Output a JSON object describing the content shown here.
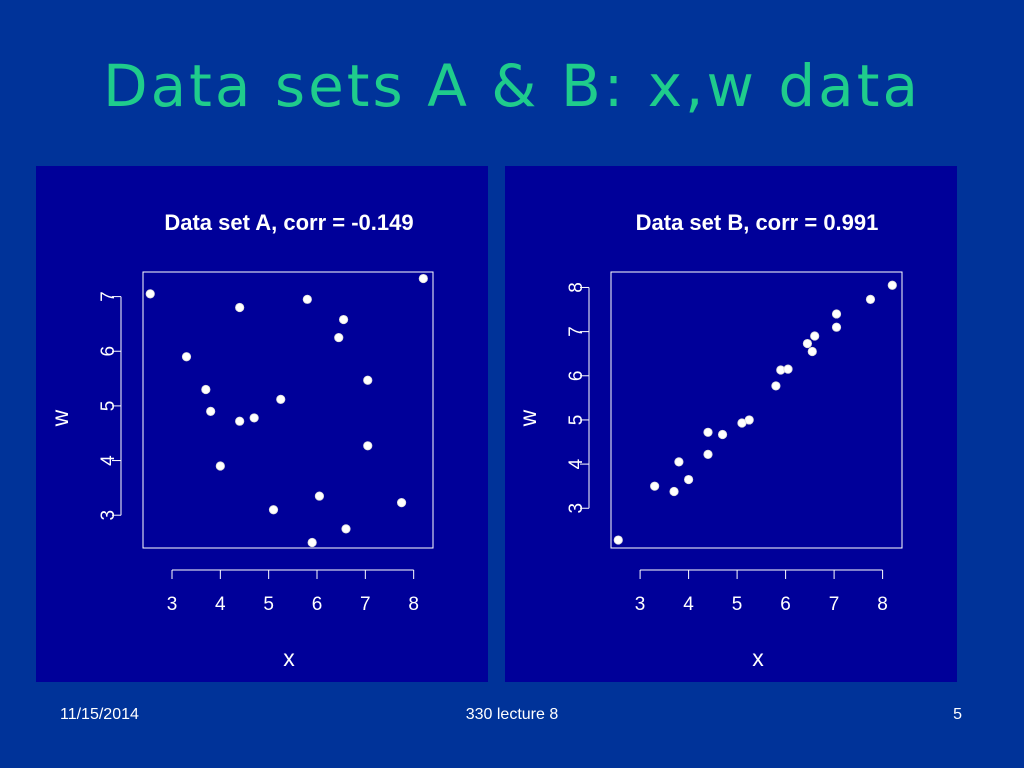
{
  "slide": {
    "title": "Data sets A & B: x,w data",
    "footer_date": "11/15/2014",
    "footer_center": "330 lecture 8",
    "footer_page": "5"
  },
  "colors": {
    "background": "#003399",
    "panel": "#000099",
    "title": "#1fcc8c",
    "text": "#ffffff",
    "points": "#ffffff"
  },
  "chart_data": [
    {
      "type": "scatter",
      "title": "Data set A, corr = -0.149",
      "xlabel": "x",
      "ylabel": "w",
      "xlim": [
        2.4,
        8.4
      ],
      "ylim": [
        2.4,
        7.45
      ],
      "xticks": [
        3,
        4,
        5,
        6,
        7,
        8
      ],
      "yticks": [
        3,
        4,
        5,
        6,
        7
      ],
      "grid": false,
      "points": [
        {
          "x": 2.55,
          "y": 7.05
        },
        {
          "x": 3.3,
          "y": 5.9
        },
        {
          "x": 3.7,
          "y": 5.3
        },
        {
          "x": 3.8,
          "y": 4.9
        },
        {
          "x": 4.0,
          "y": 3.9
        },
        {
          "x": 4.4,
          "y": 6.8
        },
        {
          "x": 4.4,
          "y": 4.72
        },
        {
          "x": 4.7,
          "y": 4.78
        },
        {
          "x": 5.1,
          "y": 3.1
        },
        {
          "x": 5.25,
          "y": 5.12
        },
        {
          "x": 5.8,
          "y": 6.95
        },
        {
          "x": 5.9,
          "y": 2.5
        },
        {
          "x": 6.05,
          "y": 3.35
        },
        {
          "x": 6.45,
          "y": 6.25
        },
        {
          "x": 6.55,
          "y": 6.58
        },
        {
          "x": 6.6,
          "y": 2.75
        },
        {
          "x": 7.05,
          "y": 5.47
        },
        {
          "x": 7.05,
          "y": 4.27
        },
        {
          "x": 7.75,
          "y": 3.23
        },
        {
          "x": 8.2,
          "y": 7.33
        }
      ]
    },
    {
      "type": "scatter",
      "title": "Data set B, corr = 0.991",
      "xlabel": "x",
      "ylabel": "w",
      "xlim": [
        2.4,
        8.4
      ],
      "ylim": [
        2.1,
        8.35
      ],
      "xticks": [
        3,
        4,
        5,
        6,
        7,
        8
      ],
      "yticks": [
        3,
        4,
        5,
        6,
        7,
        8
      ],
      "grid": false,
      "points": [
        {
          "x": 2.55,
          "y": 2.28
        },
        {
          "x": 3.3,
          "y": 3.5
        },
        {
          "x": 3.7,
          "y": 3.38
        },
        {
          "x": 3.8,
          "y": 4.05
        },
        {
          "x": 4.0,
          "y": 3.65
        },
        {
          "x": 4.4,
          "y": 4.22
        },
        {
          "x": 4.4,
          "y": 4.72
        },
        {
          "x": 4.7,
          "y": 4.67
        },
        {
          "x": 5.1,
          "y": 4.93
        },
        {
          "x": 5.25,
          "y": 5.0
        },
        {
          "x": 5.8,
          "y": 5.77
        },
        {
          "x": 5.9,
          "y": 6.13
        },
        {
          "x": 6.05,
          "y": 6.15
        },
        {
          "x": 6.45,
          "y": 6.73
        },
        {
          "x": 6.55,
          "y": 6.55
        },
        {
          "x": 6.6,
          "y": 6.9
        },
        {
          "x": 7.05,
          "y": 7.1
        },
        {
          "x": 7.05,
          "y": 7.4
        },
        {
          "x": 7.75,
          "y": 7.73
        },
        {
          "x": 8.2,
          "y": 8.05
        }
      ]
    }
  ]
}
